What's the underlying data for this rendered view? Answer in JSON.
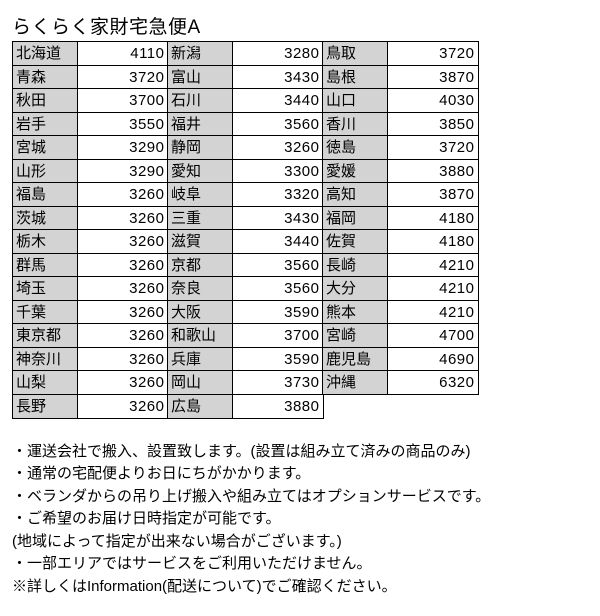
{
  "title": "らくらく家財宅急便A",
  "table": {
    "header_bg": "#d3d3d3",
    "value_bg": "#ffffff",
    "border_color": "#000000",
    "columns": [
      [
        {
          "pref": "北海道",
          "val": 4110
        },
        {
          "pref": "青森",
          "val": 3720
        },
        {
          "pref": "秋田",
          "val": 3700
        },
        {
          "pref": "岩手",
          "val": 3550
        },
        {
          "pref": "宮城",
          "val": 3290
        },
        {
          "pref": "山形",
          "val": 3290
        },
        {
          "pref": "福島",
          "val": 3260
        },
        {
          "pref": "茨城",
          "val": 3260
        },
        {
          "pref": "栃木",
          "val": 3260
        },
        {
          "pref": "群馬",
          "val": 3260
        },
        {
          "pref": "埼玉",
          "val": 3260
        },
        {
          "pref": "千葉",
          "val": 3260
        },
        {
          "pref": "東京都",
          "val": 3260
        },
        {
          "pref": "神奈川",
          "val": 3260
        },
        {
          "pref": "山梨",
          "val": 3260
        },
        {
          "pref": "長野",
          "val": 3260
        }
      ],
      [
        {
          "pref": "新潟",
          "val": 3280
        },
        {
          "pref": "富山",
          "val": 3430
        },
        {
          "pref": "石川",
          "val": 3440
        },
        {
          "pref": "福井",
          "val": 3560
        },
        {
          "pref": "静岡",
          "val": 3260
        },
        {
          "pref": "愛知",
          "val": 3300
        },
        {
          "pref": "岐阜",
          "val": 3320
        },
        {
          "pref": "三重",
          "val": 3430
        },
        {
          "pref": "滋賀",
          "val": 3440
        },
        {
          "pref": "京都",
          "val": 3560
        },
        {
          "pref": "奈良",
          "val": 3560
        },
        {
          "pref": "大阪",
          "val": 3590
        },
        {
          "pref": "和歌山",
          "val": 3700
        },
        {
          "pref": "兵庫",
          "val": 3590
        },
        {
          "pref": "岡山",
          "val": 3730
        },
        {
          "pref": "広島",
          "val": 3880
        }
      ],
      [
        {
          "pref": "鳥取",
          "val": 3720
        },
        {
          "pref": "島根",
          "val": 3870
        },
        {
          "pref": "山口",
          "val": 4030
        },
        {
          "pref": "香川",
          "val": 3850
        },
        {
          "pref": "徳島",
          "val": 3720
        },
        {
          "pref": "愛媛",
          "val": 3880
        },
        {
          "pref": "高知",
          "val": 3870
        },
        {
          "pref": "福岡",
          "val": 4180
        },
        {
          "pref": "佐賀",
          "val": 4180
        },
        {
          "pref": "長崎",
          "val": 4210
        },
        {
          "pref": "大分",
          "val": 4210
        },
        {
          "pref": "熊本",
          "val": 4210
        },
        {
          "pref": "宮崎",
          "val": 4700
        },
        {
          "pref": "鹿児島",
          "val": 4690
        },
        {
          "pref": "沖縄",
          "val": 6320
        }
      ]
    ]
  },
  "notes": [
    "・運送会社で搬入、設置致します。(設置は組み立て済みの商品のみ)",
    "・通常の宅配便よりお日にちがかかります。",
    "・ベランダからの吊り上げ搬入や組み立てはオプションサービスです。",
    "・ご希望のお届け日時指定が可能です。",
    "(地域によって指定が出来ない場合がございます。)",
    "・一部エリアではサービスをご利用いただけません。",
    "※詳しくはInformation(配送について)でご確認ください。"
  ]
}
